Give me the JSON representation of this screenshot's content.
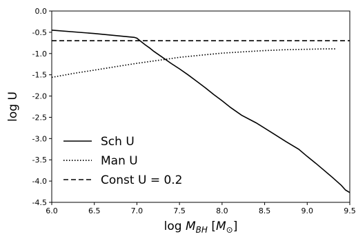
{
  "chart_data": {
    "type": "line",
    "xlabel": "log M_BH [M_⊙]",
    "ylabel": "log U",
    "xlim": [
      6.0,
      9.5
    ],
    "ylim": [
      -4.5,
      0.0
    ],
    "xticks": [
      "6.0",
      "6.5",
      "7.0",
      "7.5",
      "8.0",
      "8.5",
      "9.0",
      "9.5"
    ],
    "yticks": [
      "0.0",
      "-0.5",
      "-1.0",
      "-1.5",
      "-2.0",
      "-2.5",
      "-3.0",
      "-3.5",
      "-4.0",
      "-4.5"
    ],
    "grid": false,
    "legend_position": "lower-left",
    "series": [
      {
        "name": "Sch U",
        "style": "solid",
        "color": "#000000",
        "x": [
          6.0,
          6.5,
          6.97,
          7.0,
          7.05,
          7.1,
          7.15,
          7.2,
          7.3,
          7.4,
          7.5,
          7.6,
          7.7,
          7.8,
          7.9,
          8.0,
          8.1,
          8.23,
          8.4,
          8.6,
          8.75,
          8.9,
          9.0,
          9.1,
          9.2,
          9.3,
          9.4,
          9.45,
          9.5
        ],
        "y": [
          -0.45,
          -0.53,
          -0.62,
          -0.64,
          -0.72,
          -0.8,
          -0.87,
          -0.95,
          -1.09,
          -1.23,
          -1.36,
          -1.5,
          -1.65,
          -1.8,
          -1.96,
          -2.11,
          -2.27,
          -2.45,
          -2.63,
          -2.88,
          -3.07,
          -3.25,
          -3.42,
          -3.58,
          -3.75,
          -3.92,
          -4.1,
          -4.21,
          -4.27
        ]
      },
      {
        "name": "Man U",
        "style": "dotted",
        "color": "#000000",
        "x": [
          6.0,
          6.25,
          6.5,
          6.75,
          7.0,
          7.25,
          7.5,
          7.75,
          8.0,
          8.25,
          8.5,
          8.75,
          9.0,
          9.2,
          9.33
        ],
        "y": [
          -1.56,
          -1.47,
          -1.39,
          -1.31,
          -1.23,
          -1.16,
          -1.09,
          -1.04,
          -0.99,
          -0.96,
          -0.93,
          -0.91,
          -0.9,
          -0.89,
          -0.89
        ]
      },
      {
        "name": "Const U = 0.2",
        "style": "dashed",
        "color": "#000000",
        "x": [
          6.0,
          9.5
        ],
        "y": [
          -0.7,
          -0.7
        ]
      }
    ]
  }
}
